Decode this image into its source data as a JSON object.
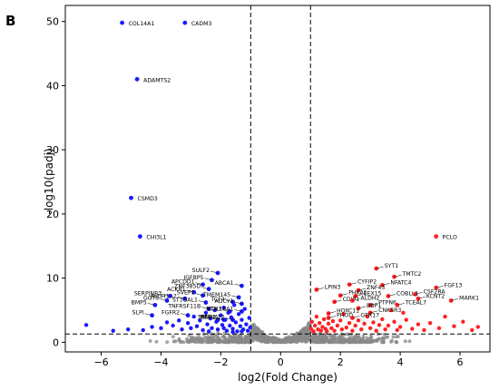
{
  "panel_label": "B",
  "colors": {
    "down": "#1a1aff",
    "up": "#ff2222",
    "ns": "#888888",
    "axis": "#000000",
    "leader": "#000000"
  },
  "chart_data": {
    "type": "scatter",
    "title": "",
    "xlabel": "log2(Fold Change)",
    "ylabel": "-log10(padj)",
    "xlim": [
      -7.2,
      7.0
    ],
    "ylim": [
      -1.5,
      52.5
    ],
    "xticks": [
      -6,
      -4,
      -2,
      0,
      2,
      4,
      6
    ],
    "yticks": [
      0,
      10,
      20,
      30,
      40,
      50
    ],
    "grid": false,
    "thresholds": {
      "fc": [
        -1,
        1
      ],
      "padj": 1.3
    },
    "down_labeled": [
      {
        "label": "COL14A1",
        "x": -5.3,
        "y": 49.8
      },
      {
        "label": "CADM3",
        "x": -3.2,
        "y": 49.8
      },
      {
        "label": "ADAMTS2",
        "x": -4.8,
        "y": 41.0
      },
      {
        "label": "CSMD3",
        "x": -5.0,
        "y": 22.5
      },
      {
        "label": "CHI3L1",
        "x": -4.7,
        "y": 16.5
      },
      {
        "label": "SULF2",
        "x": -2.1,
        "y": 10.8
      },
      {
        "label": "IGFBP5",
        "x": -2.3,
        "y": 9.7
      },
      {
        "label": "APCDD1",
        "x": -2.6,
        "y": 9.0
      },
      {
        "label": "ZNF385D",
        "x": -2.4,
        "y": 8.3
      },
      {
        "label": "ABCA1",
        "x": -1.3,
        "y": 8.8
      },
      {
        "label": "ACKR1",
        "x": -2.9,
        "y": 7.8
      },
      {
        "label": "SVEP1",
        "x": -2.6,
        "y": 7.3
      },
      {
        "label": "TMEM145",
        "x": -1.4,
        "y": 7.0
      },
      {
        "label": "ALDH1A2",
        "x": -3.2,
        "y": 6.8
      },
      {
        "label": "SERPINB3",
        "x": -3.7,
        "y": 7.2
      },
      {
        "label": "GGT5",
        "x": -3.8,
        "y": 6.5
      },
      {
        "label": "ST3GAL1",
        "x": -2.5,
        "y": 6.2
      },
      {
        "label": "TCF4",
        "x": -1.6,
        "y": 6.3
      },
      {
        "label": "ADCY1",
        "x": -1.3,
        "y": 6.0
      },
      {
        "label": "BMP5",
        "x": -4.2,
        "y": 5.8
      },
      {
        "label": "TNFRSF11B",
        "x": -2.4,
        "y": 5.2
      },
      {
        "label": "NTN1",
        "x": -1.7,
        "y": 4.8
      },
      {
        "label": "COL18A1",
        "x": -1.3,
        "y": 4.8
      },
      {
        "label": "SLPI",
        "x": -4.3,
        "y": 4.2
      },
      {
        "label": "FGFR2",
        "x": -3.1,
        "y": 4.2
      },
      {
        "label": "MEI",
        "x": -2.1,
        "y": 3.5
      },
      {
        "label": "SBSP2",
        "x": -1.9,
        "y": 3.5
      },
      {
        "label": "NMNAT2",
        "x": -1.6,
        "y": 3.5
      }
    ],
    "up_labeled": [
      {
        "label": "PCLO",
        "x": 5.2,
        "y": 16.5
      },
      {
        "label": "SYT1",
        "x": 3.2,
        "y": 11.5
      },
      {
        "label": "TMTC2",
        "x": 3.8,
        "y": 10.2
      },
      {
        "label": "NFATC4",
        "x": 3.4,
        "y": 8.9
      },
      {
        "label": "FGF13",
        "x": 5.2,
        "y": 8.5
      },
      {
        "label": "CYFIP2",
        "x": 2.3,
        "y": 9.0
      },
      {
        "label": "LPIN3",
        "x": 1.2,
        "y": 8.2
      },
      {
        "label": "ZNF43",
        "x": 2.6,
        "y": 8.1
      },
      {
        "label": "CSF2RA",
        "x": 4.5,
        "y": 7.5
      },
      {
        "label": "PHKA1",
        "x": 2.0,
        "y": 7.3
      },
      {
        "label": "EEX15",
        "x": 2.5,
        "y": 7.2
      },
      {
        "label": "COBLL1",
        "x": 3.6,
        "y": 7.2
      },
      {
        "label": "CDIP1",
        "x": 1.8,
        "y": 6.3
      },
      {
        "label": "ALDH2",
        "x": 2.4,
        "y": 6.5
      },
      {
        "label": "KCNT2",
        "x": 4.6,
        "y": 6.8
      },
      {
        "label": "MARK1",
        "x": 5.7,
        "y": 6.5
      },
      {
        "label": "PTPN6",
        "x": 3.0,
        "y": 5.8
      },
      {
        "label": "TCEAL7",
        "x": 3.9,
        "y": 5.8
      },
      {
        "label": "BBP1",
        "x": 2.6,
        "y": 5.3
      },
      {
        "label": "HOXC11",
        "x": 1.6,
        "y": 4.5
      },
      {
        "label": "CNKSR3",
        "x": 3.0,
        "y": 4.6
      },
      {
        "label": "PHOD",
        "x": 1.6,
        "y": 3.8
      },
      {
        "label": "GPR17",
        "x": 2.4,
        "y": 3.8
      }
    ],
    "down_extra": [
      {
        "x": -6.5,
        "y": 2.7
      },
      {
        "x": -5.6,
        "y": 1.8
      },
      {
        "x": -5.1,
        "y": 2.0
      },
      {
        "x": -4.6,
        "y": 1.9
      },
      {
        "x": -4.3,
        "y": 2.4
      },
      {
        "x": -4.0,
        "y": 2.2
      },
      {
        "x": -3.8,
        "y": 3.1
      },
      {
        "x": -3.6,
        "y": 2.6
      },
      {
        "x": -3.4,
        "y": 3.4
      },
      {
        "x": -3.3,
        "y": 2.0
      },
      {
        "x": -3.1,
        "y": 3.0
      },
      {
        "x": -2.9,
        "y": 4.0
      },
      {
        "x": -2.8,
        "y": 2.5
      },
      {
        "x": -2.7,
        "y": 3.4
      },
      {
        "x": -2.6,
        "y": 1.9
      },
      {
        "x": -2.5,
        "y": 4.6
      },
      {
        "x": -2.45,
        "y": 2.8
      },
      {
        "x": -2.35,
        "y": 3.7
      },
      {
        "x": -2.3,
        "y": 2.2
      },
      {
        "x": -2.2,
        "y": 5.0
      },
      {
        "x": -2.15,
        "y": 3.2
      },
      {
        "x": -2.1,
        "y": 2.0
      },
      {
        "x": -2.0,
        "y": 4.2
      },
      {
        "x": -1.95,
        "y": 2.7
      },
      {
        "x": -1.9,
        "y": 5.4
      },
      {
        "x": -1.85,
        "y": 3.5
      },
      {
        "x": -1.8,
        "y": 1.8
      },
      {
        "x": -1.75,
        "y": 4.6
      },
      {
        "x": -1.7,
        "y": 2.6
      },
      {
        "x": -1.65,
        "y": 3.9
      },
      {
        "x": -1.6,
        "y": 2.1
      },
      {
        "x": -1.55,
        "y": 5.8
      },
      {
        "x": -1.5,
        "y": 3.1
      },
      {
        "x": -1.45,
        "y": 1.7
      },
      {
        "x": -1.4,
        "y": 4.4
      },
      {
        "x": -1.35,
        "y": 2.5
      },
      {
        "x": -1.3,
        "y": 3.5
      },
      {
        "x": -1.25,
        "y": 2.0
      },
      {
        "x": -1.2,
        "y": 5.2
      },
      {
        "x": -1.15,
        "y": 2.8
      },
      {
        "x": -1.1,
        "y": 1.8
      },
      {
        "x": -1.05,
        "y": 3.8
      },
      {
        "x": -1.02,
        "y": 2.3
      },
      {
        "x": -3.0,
        "y": 2.2
      },
      {
        "x": -2.4,
        "y": 1.7
      },
      {
        "x": -1.9,
        "y": 2.2
      },
      {
        "x": -1.6,
        "y": 1.6
      },
      {
        "x": -1.3,
        "y": 1.7
      }
    ],
    "up_extra": [
      {
        "x": 1.02,
        "y": 2.1
      },
      {
        "x": 1.05,
        "y": 3.2
      },
      {
        "x": 1.1,
        "y": 1.7
      },
      {
        "x": 1.15,
        "y": 2.6
      },
      {
        "x": 1.2,
        "y": 4.0
      },
      {
        "x": 1.25,
        "y": 2.0
      },
      {
        "x": 1.3,
        "y": 3.0
      },
      {
        "x": 1.35,
        "y": 1.8
      },
      {
        "x": 1.4,
        "y": 2.4
      },
      {
        "x": 1.45,
        "y": 3.6
      },
      {
        "x": 1.5,
        "y": 2.1
      },
      {
        "x": 1.55,
        "y": 1.7
      },
      {
        "x": 1.6,
        "y": 2.9
      },
      {
        "x": 1.7,
        "y": 2.2
      },
      {
        "x": 1.75,
        "y": 3.3
      },
      {
        "x": 1.8,
        "y": 1.8
      },
      {
        "x": 1.9,
        "y": 2.6
      },
      {
        "x": 2.0,
        "y": 3.4
      },
      {
        "x": 2.05,
        "y": 2.0
      },
      {
        "x": 2.1,
        "y": 4.4
      },
      {
        "x": 2.2,
        "y": 2.3
      },
      {
        "x": 2.3,
        "y": 3.0
      },
      {
        "x": 2.4,
        "y": 1.8
      },
      {
        "x": 2.5,
        "y": 2.6
      },
      {
        "x": 2.6,
        "y": 3.4
      },
      {
        "x": 2.7,
        "y": 2.0
      },
      {
        "x": 2.8,
        "y": 2.9
      },
      {
        "x": 2.9,
        "y": 4.0
      },
      {
        "x": 3.0,
        "y": 2.2
      },
      {
        "x": 3.1,
        "y": 3.1
      },
      {
        "x": 3.2,
        "y": 1.8
      },
      {
        "x": 3.3,
        "y": 2.7
      },
      {
        "x": 3.4,
        "y": 3.6
      },
      {
        "x": 3.5,
        "y": 2.0
      },
      {
        "x": 3.6,
        "y": 2.6
      },
      {
        "x": 3.8,
        "y": 3.2
      },
      {
        "x": 3.9,
        "y": 1.9
      },
      {
        "x": 4.0,
        "y": 2.4
      },
      {
        "x": 4.2,
        "y": 3.5
      },
      {
        "x": 4.4,
        "y": 2.1
      },
      {
        "x": 4.6,
        "y": 2.8
      },
      {
        "x": 4.8,
        "y": 1.9
      },
      {
        "x": 5.0,
        "y": 3.0
      },
      {
        "x": 5.3,
        "y": 2.2
      },
      {
        "x": 5.5,
        "y": 4.0
      },
      {
        "x": 5.8,
        "y": 2.5
      },
      {
        "x": 6.1,
        "y": 3.2
      },
      {
        "x": 6.4,
        "y": 1.9
      },
      {
        "x": 4.1,
        "y": 4.6
      },
      {
        "x": 3.7,
        "y": 5.0
      },
      {
        "x": 6.6,
        "y": 2.4
      }
    ],
    "ns_cloud": {
      "x_range": [
        -6.5,
        6.6
      ],
      "note": ""
    }
  }
}
